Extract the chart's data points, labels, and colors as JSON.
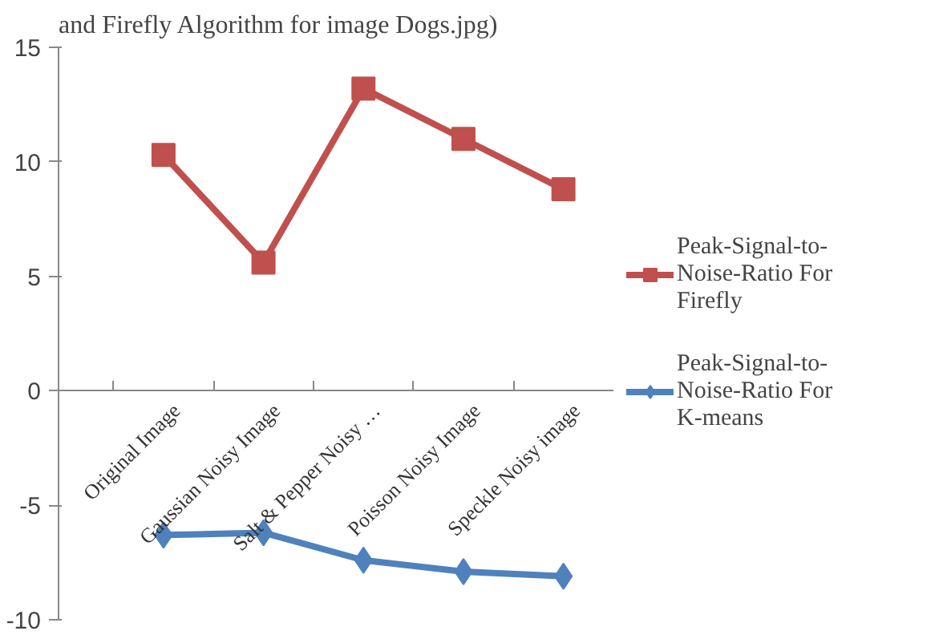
{
  "chart_data": {
    "type": "line",
    "title": "and Firefly Algorithm for image Dogs.jpg)",
    "categories": [
      "Original Image",
      "Gaussian Noisy Image",
      "Salt & Pepper Noisy …",
      "Poisson Noisy Image",
      "Speckle Noisy image"
    ],
    "series": [
      {
        "name": "Peak-Signal-to-Noise-Ratio For Firefly",
        "color": "#c0504d",
        "marker": "square",
        "values": [
          10.3,
          5.6,
          13.2,
          11.0,
          8.8
        ]
      },
      {
        "name": "Peak-Signal-to-Noise-Ratio For K-means",
        "color": "#4f81bd",
        "marker": "diamond",
        "values": [
          -6.3,
          -6.2,
          -7.4,
          -7.9,
          -8.1
        ]
      }
    ],
    "ylim": [
      -10,
      15
    ],
    "yticks": [
      -10,
      -5,
      0,
      5,
      10,
      15
    ],
    "grid": false,
    "legend": "right"
  }
}
